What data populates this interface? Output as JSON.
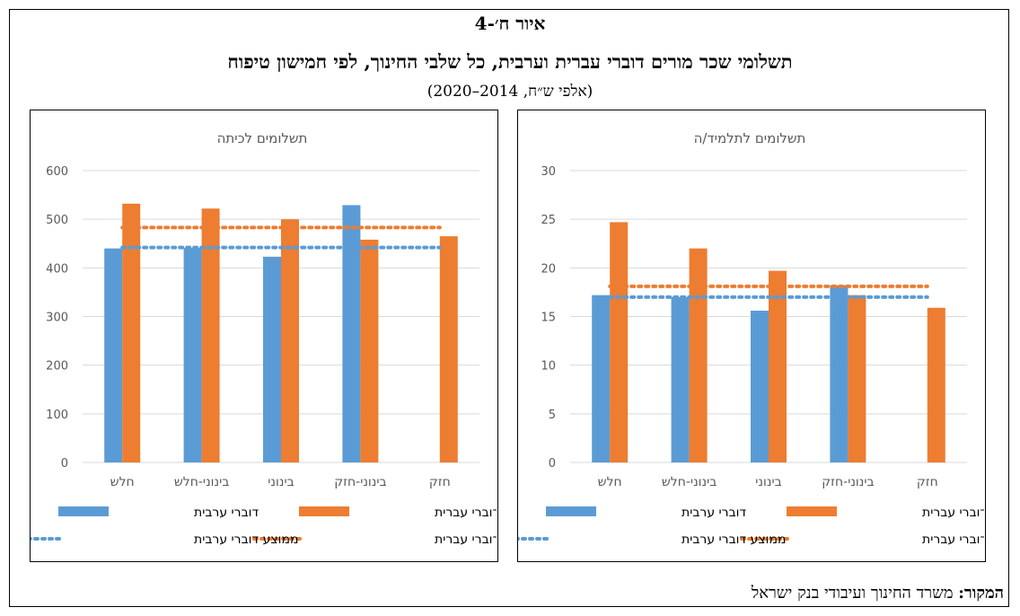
{
  "figure": {
    "number": "איור ח׳-4",
    "title": "תשלומי שכר מורים דוברי עברית וערבית, כל שלבי החינוך, לפי חמישון טיפוח",
    "subtitle": "(אלפי ש״ח, 2014–2020)"
  },
  "source": {
    "label": "המקור:",
    "text": "משרד החינוך ועיבודי בנק ישראל"
  },
  "colors": {
    "arabic": "#5B9BD5",
    "hebrew": "#ED7D31",
    "grid": "#D9D9D9",
    "text": "#595959"
  },
  "chart_data": [
    {
      "type": "bar",
      "title": "תשלומים לכיתה",
      "categories": [
        "חלש",
        "בינוני-חלש",
        "בינוני",
        "בינוני-חזק",
        "חזק"
      ],
      "ylim": [
        0,
        600
      ],
      "yticks": [
        "0",
        "100",
        "200",
        "300",
        "400",
        "500",
        "600"
      ],
      "grid": true,
      "legend_position": "bottom",
      "series": [
        {
          "name": "דוברי ערבית",
          "kind": "bar",
          "values": [
            440,
            441,
            423,
            529,
            null
          ]
        },
        {
          "name": "דוברי עברית",
          "kind": "bar",
          "values": [
            532,
            522,
            500,
            458,
            465
          ]
        },
        {
          "name": "ממוצע דוברי ערבית",
          "kind": "dotted-line",
          "value": 442
        },
        {
          "name": "ממוצע דוברי עברית",
          "kind": "dotted-line",
          "value": 483
        }
      ]
    },
    {
      "type": "bar",
      "title": "תשלומים לתלמיד/ה",
      "categories": [
        "חלש",
        "בינוני-חלש",
        "בינוני",
        "בינוני-חזק",
        "חזק"
      ],
      "ylim": [
        0,
        30
      ],
      "yticks": [
        "0",
        "5",
        "10",
        "15",
        "20",
        "25",
        "30"
      ],
      "grid": true,
      "legend_position": "bottom",
      "series": [
        {
          "name": "דוברי ערבית",
          "kind": "bar",
          "values": [
            17.2,
            17.0,
            15.6,
            18.2,
            null
          ]
        },
        {
          "name": "דוברי עברית",
          "kind": "bar",
          "values": [
            24.7,
            22.0,
            19.7,
            17.2,
            15.9
          ]
        },
        {
          "name": "ממוצע דוברי ערבית",
          "kind": "dotted-line",
          "value": 17.0
        },
        {
          "name": "ממוצע דוברי עברית",
          "kind": "dotted-line",
          "value": 18.1
        }
      ]
    }
  ]
}
